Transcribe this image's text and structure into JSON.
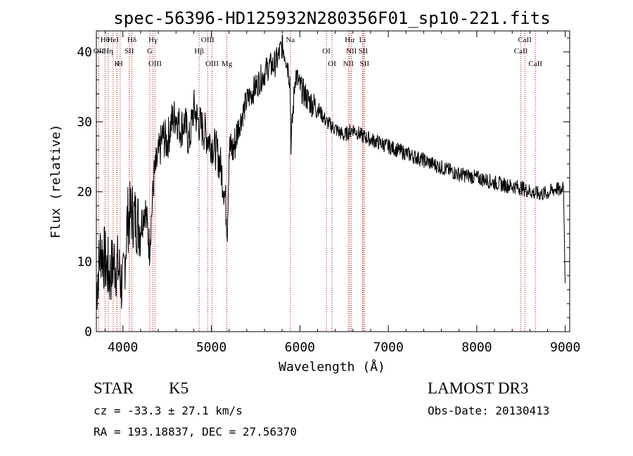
{
  "chart_data": {
    "type": "line",
    "title": "spec-56396-HD125932N280356F01_sp10-221.fits",
    "xlabel": "Wavelength (Å)",
    "ylabel": "Flux (relative)",
    "xlim": [
      3700,
      9050
    ],
    "ylim": [
      0,
      43
    ],
    "xticks": [
      4000,
      5000,
      6000,
      7000,
      8000,
      9000
    ],
    "yticks": [
      0,
      10,
      20,
      30,
      40
    ],
    "grid": false,
    "series": [
      {
        "name": "flux",
        "x": [
          3700,
          3750,
          3800,
          3850,
          3900,
          3950,
          4000,
          4050,
          4100,
          4150,
          4200,
          4250,
          4300,
          4350,
          4400,
          4450,
          4500,
          4550,
          4600,
          4650,
          4700,
          4750,
          4800,
          4850,
          4900,
          4950,
          5000,
          5050,
          5100,
          5150,
          5180,
          5200,
          5250,
          5300,
          5350,
          5400,
          5450,
          5500,
          5550,
          5600,
          5650,
          5700,
          5750,
          5800,
          5850,
          5890,
          5900,
          5950,
          6000,
          6100,
          6200,
          6300,
          6400,
          6500,
          6600,
          6700,
          6800,
          6900,
          7000,
          7100,
          7200,
          7300,
          7400,
          7500,
          7600,
          7700,
          7800,
          7900,
          8000,
          8100,
          8200,
          8300,
          8400,
          8500,
          8550,
          8600,
          8650,
          8700,
          8800,
          8900,
          8950,
          8980,
          9000
        ],
        "y": [
          6,
          12,
          10,
          8,
          10,
          9,
          6,
          16,
          17,
          16,
          15,
          18,
          12,
          22,
          25,
          28,
          27,
          30,
          31,
          29,
          30,
          27,
          32,
          30,
          29,
          28,
          27,
          26,
          24,
          20,
          15,
          26,
          26,
          29,
          31,
          33,
          34,
          35,
          36,
          37,
          38,
          38,
          39,
          41,
          39,
          36,
          27,
          37,
          35,
          33,
          32,
          30,
          29,
          28,
          29,
          28,
          27.5,
          27,
          26.5,
          26,
          25.5,
          25,
          24.5,
          24,
          23.5,
          23,
          22.5,
          22.3,
          22,
          21.7,
          21.3,
          21,
          20.8,
          20.6,
          20.3,
          20.1,
          19.8,
          19.7,
          19.8,
          20.5,
          20,
          21.5,
          6
        ]
      }
    ],
    "lines": [
      {
        "label": "Hθ",
        "x": 3798
      },
      {
        "label": "OII",
        "x": 3727
      },
      {
        "label": "K",
        "x": 3934
      },
      {
        "label": "HeI",
        "x": 3889
      },
      {
        "label": "Hη",
        "x": 3835
      },
      {
        "label": "H",
        "x": 3969
      },
      {
        "label": "Hδ",
        "x": 4102
      },
      {
        "label": "SII",
        "x": 4072
      },
      {
        "label": "OIII",
        "x": 4363
      },
      {
        "label": "Hγ",
        "x": 4340
      },
      {
        "label": "G",
        "x": 4304
      },
      {
        "label": "OIII",
        "x": 5007
      },
      {
        "label": "OIII",
        "x": 4959
      },
      {
        "label": "Hβ",
        "x": 4861
      },
      {
        "label": "Mg",
        "x": 5175
      },
      {
        "label": "Na",
        "x": 5893
      },
      {
        "label": "OI",
        "x": 6300
      },
      {
        "label": "OI",
        "x": 6364
      },
      {
        "label": "Hα",
        "x": 6563
      },
      {
        "label": "SII",
        "x": 6716
      },
      {
        "label": "NII",
        "x": 6548
      },
      {
        "label": "Li",
        "x": 6708
      },
      {
        "label": "NII",
        "x": 6583
      },
      {
        "label": "SII",
        "x": 6731
      },
      {
        "label": "CaII",
        "x": 8542
      },
      {
        "label": "CaII",
        "x": 8498
      },
      {
        "label": "CaII",
        "x": 8662
      }
    ]
  },
  "info": {
    "object_class": "STAR",
    "subclass": "K5",
    "survey": "LAMOST DR3",
    "cz": "cz = -33.3 ± 27.1 km/s",
    "obs_date": "Obs-Date: 20130413",
    "coords": "RA = 193.18837, DEC =  27.56370"
  },
  "colors": {
    "axis": "#000000",
    "spectrum": "#000000",
    "line_marker": "#c00000"
  }
}
